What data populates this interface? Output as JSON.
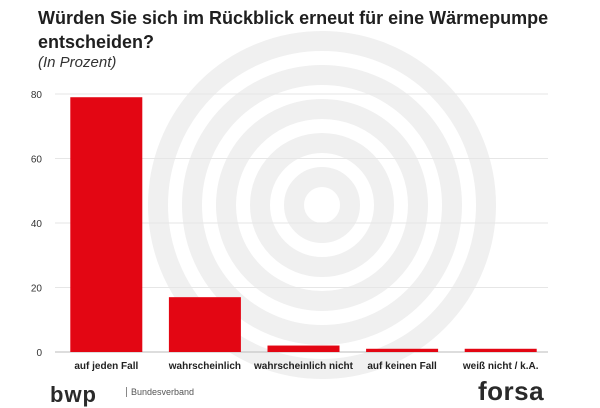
{
  "header": {
    "title": "Würden Sie sich im Rückblick erneut für eine Wärmepumpe entscheiden?",
    "subtitle": "(In Prozent)"
  },
  "logos": {
    "left_mark": "bwp",
    "left_text": "Bundesverband",
    "right_mark": "forsa"
  },
  "chart_data": {
    "type": "bar",
    "title": "Würden Sie sich im Rückblick erneut für eine Wärmepumpe entscheiden?",
    "subtitle": "(In Prozent)",
    "categories": [
      "auf jeden Fall",
      "wahrscheinlich",
      "wahrscheinlich nicht",
      "auf keinen Fall",
      "weiß nicht / k.A."
    ],
    "values": [
      79,
      17,
      2,
      1,
      1
    ],
    "xlabel": "",
    "ylabel": "",
    "ylim": [
      0,
      80
    ],
    "yticks": [
      0,
      20,
      40,
      60,
      80
    ],
    "grid": true,
    "legend": "none",
    "bar_color": "#e30613"
  },
  "colors": {
    "bar": "#e30613",
    "grid": "#e6e6e6",
    "watermark": "#f0f0f0"
  }
}
